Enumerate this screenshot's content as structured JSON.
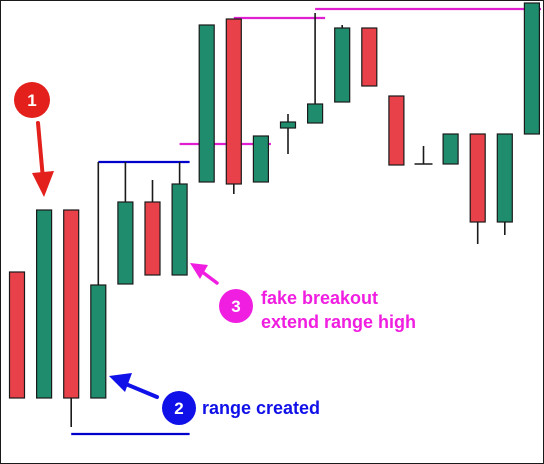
{
  "chart_data": {
    "type": "candlestick",
    "title": "",
    "xlabel": "",
    "ylabel": "",
    "axes_visible": false,
    "grid": false,
    "colors": {
      "bullish": "#1f8c6e",
      "bearish": "#e8414a",
      "candle_outline": "#1a1a1a",
      "range_line": "#0000cc",
      "extended_range_line": "#e020d0",
      "badge_1": "#e3201b",
      "badge_2": "#1010e8",
      "badge_3": "#f01ee0"
    },
    "candles": [
      {
        "index": 1,
        "open": 0.0,
        "close": 126.0,
        "high": 126.0,
        "low": 0.0,
        "direction": "bearish"
      },
      {
        "index": 2,
        "open": 0.0,
        "close": 188.0,
        "high": 188.0,
        "low": 0.0,
        "direction": "bullish"
      },
      {
        "index": 3,
        "open": 188.0,
        "close": 0.0,
        "high": 188.0,
        "low": -29.0,
        "direction": "bearish"
      },
      {
        "index": 4,
        "open": 0.0,
        "close": 113.0,
        "high": 236.0,
        "low": 0.0,
        "direction": "bullish"
      },
      {
        "index": 5,
        "open": 114.0,
        "close": 196.0,
        "high": 236.0,
        "low": 114.0,
        "direction": "bullish"
      },
      {
        "index": 6,
        "open": 196.0,
        "close": 123.0,
        "high": 218.0,
        "low": 123.0,
        "direction": "bearish"
      },
      {
        "index": 7,
        "open": 123.0,
        "close": 214.0,
        "high": 236.0,
        "low": 123.0,
        "direction": "bullish"
      },
      {
        "index": 8,
        "open": 216.0,
        "close": 373.0,
        "high": 373.0,
        "low": 216.0,
        "direction": "bullish"
      },
      {
        "index": 9,
        "open": 379.0,
        "close": 214.0,
        "high": 379.0,
        "low": 204.0,
        "direction": "bearish"
      },
      {
        "index": 10,
        "open": 216.0,
        "close": 262.0,
        "high": 262.0,
        "low": 216.0,
        "direction": "bullish"
      },
      {
        "index": 11,
        "open": 270.0,
        "close": 276.0,
        "high": 284.0,
        "low": 244.0,
        "direction": "bullish"
      },
      {
        "index": 12,
        "open": 275.0,
        "close": 294.0,
        "high": 385.0,
        "low": 275.0,
        "direction": "bullish"
      },
      {
        "index": 13,
        "open": 296.0,
        "close": 370.0,
        "high": 373.0,
        "low": 296.0,
        "direction": "bullish"
      },
      {
        "index": 14,
        "open": 370.0,
        "close": 312.0,
        "high": 370.0,
        "low": 312.0,
        "direction": "bearish"
      },
      {
        "index": 15,
        "open": 302.0,
        "close": 233.0,
        "high": 302.0,
        "low": 233.0,
        "direction": "bearish"
      },
      {
        "index": 16,
        "open": 234.0,
        "close": 234.0,
        "high": 252.0,
        "low": 234.0,
        "direction": "doji"
      },
      {
        "index": 17,
        "open": 234.0,
        "close": 264.0,
        "high": 264.0,
        "low": 234.0,
        "direction": "bullish"
      },
      {
        "index": 18,
        "open": 264.0,
        "close": 176.0,
        "high": 264.0,
        "low": 154.0,
        "direction": "bearish"
      },
      {
        "index": 19,
        "open": 176.0,
        "close": 264.0,
        "high": 264.0,
        "low": 163.0,
        "direction": "bullish"
      },
      {
        "index": 20,
        "open": 264.0,
        "close": 395.0,
        "high": 395.0,
        "low": 264.0,
        "direction": "bullish"
      }
    ],
    "levels": [
      {
        "name": "range-low",
        "value": -36.0,
        "from_index": 3,
        "to_index": 7
      },
      {
        "name": "range-high",
        "value": 236.0,
        "from_index": 4,
        "to_index": 7
      },
      {
        "name": "extended-range-high",
        "value": 254.0,
        "from_index": 7,
        "to_index": 10
      },
      {
        "name": "higher-range-high",
        "value": 380.0,
        "from_index": 9,
        "to_index": 12
      },
      {
        "name": "higher-range-high-extended",
        "value": 389.0,
        "from_index": 12,
        "to_index": 20
      }
    ],
    "annotations": [
      {
        "number": "1",
        "text": "",
        "points_to_index": 2
      },
      {
        "number": "2",
        "text": "range created",
        "points_to_index": 4
      },
      {
        "number": "3",
        "text": [
          "fake breakout",
          "extend range high"
        ],
        "points_to_index": 7
      }
    ]
  }
}
